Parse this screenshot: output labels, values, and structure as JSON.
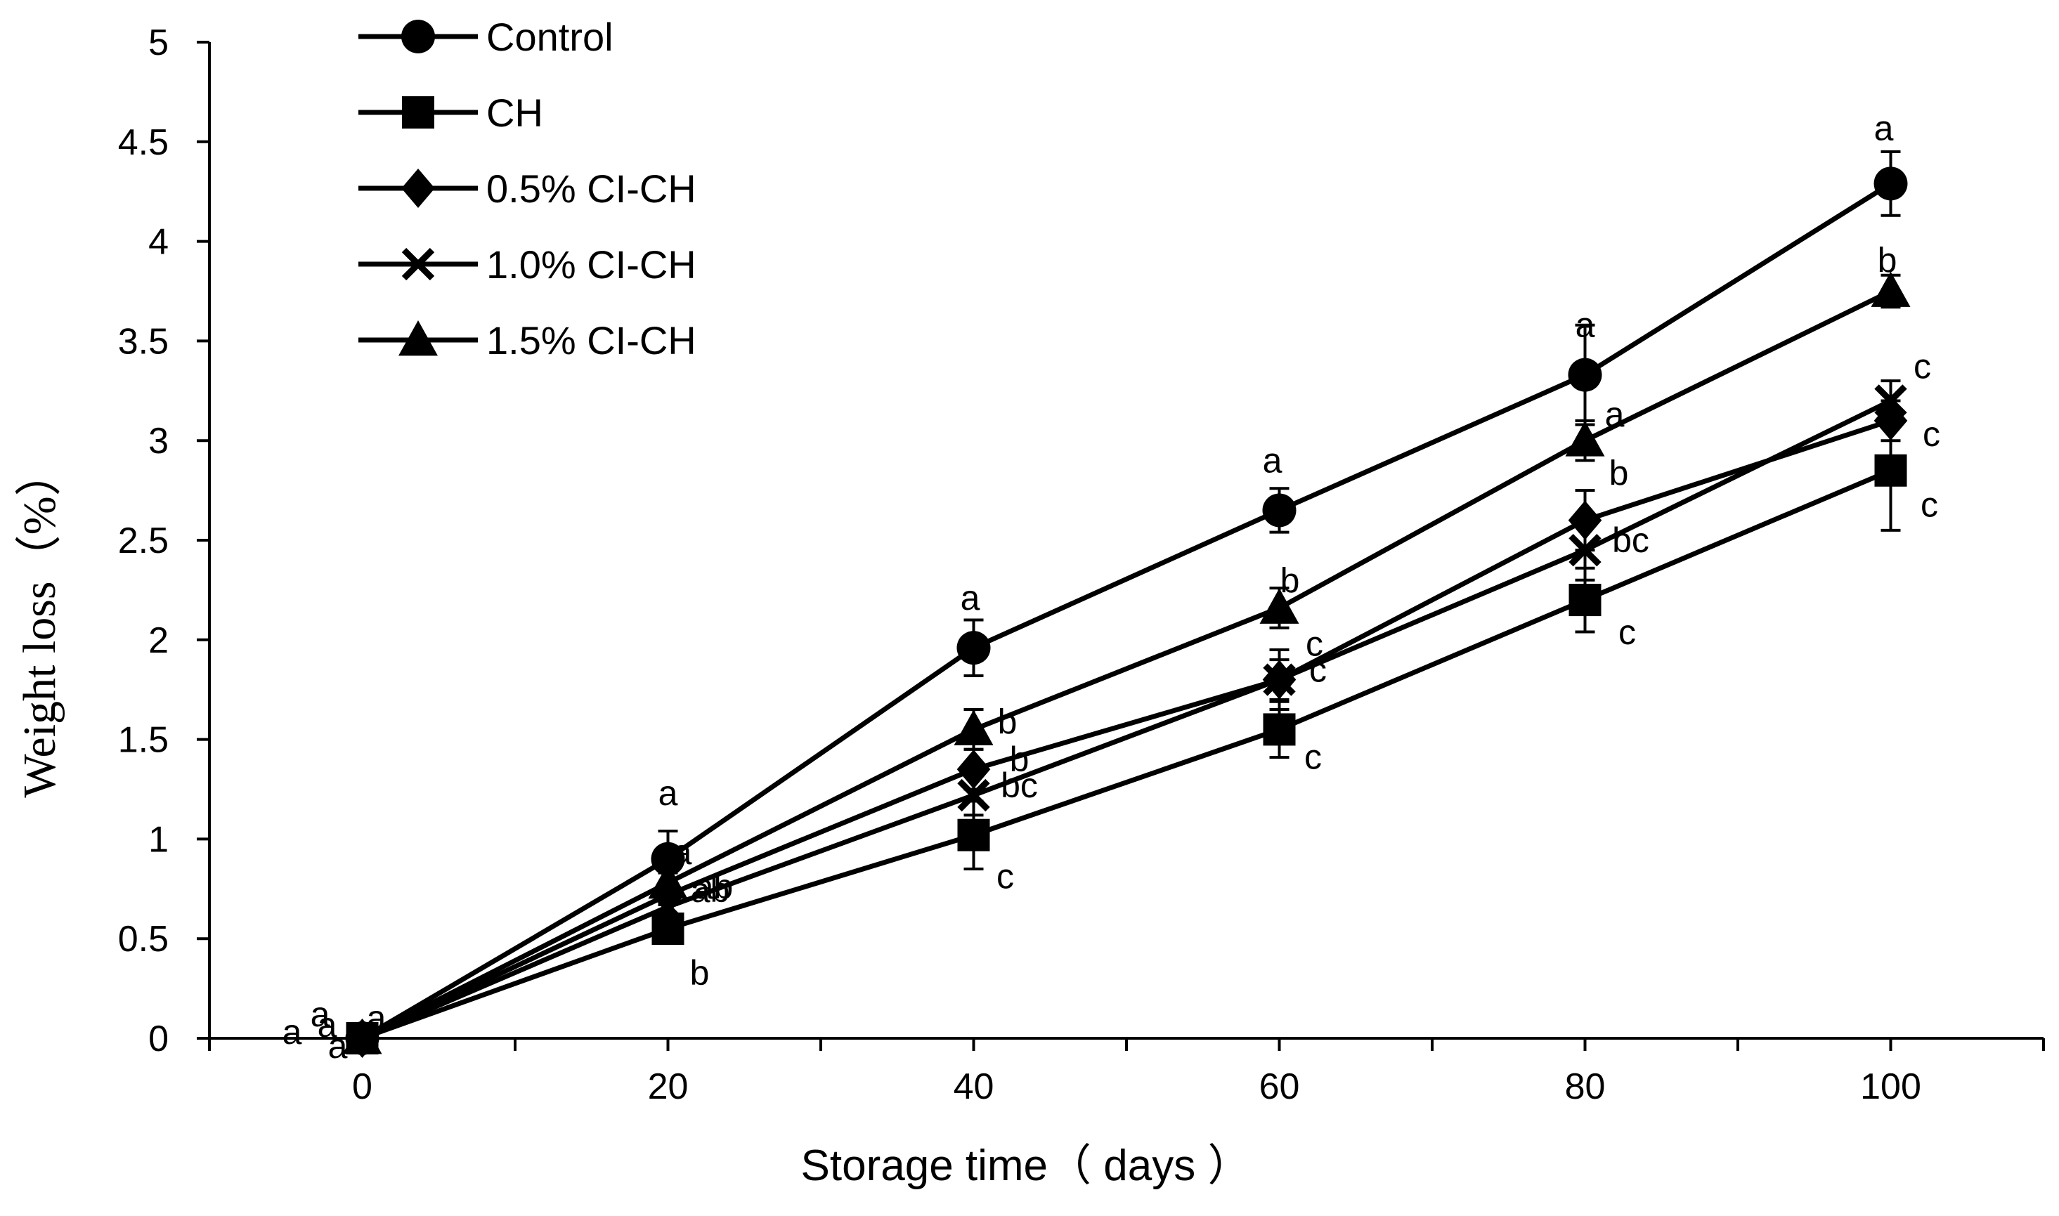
{
  "chart_data": {
    "type": "line",
    "title": "",
    "xlabel": "Storage time（ days ）",
    "ylabel": "Weight loss（%）",
    "x": [
      0,
      20,
      40,
      60,
      80,
      100
    ],
    "xlim": [
      -10,
      110
    ],
    "ylim": [
      0,
      5
    ],
    "x_ticks": [
      0,
      20,
      40,
      60,
      80,
      100
    ],
    "y_ticks": [
      0,
      0.5,
      1,
      1.5,
      2,
      2.5,
      3,
      3.5,
      4,
      4.5,
      5
    ],
    "y_tick_labels": [
      "0",
      "0.5",
      "1",
      "1.5",
      "2",
      "2.5",
      "3",
      "3.5",
      "4",
      "4.5",
      "5"
    ],
    "grid": false,
    "legend_position": "top-left",
    "series": [
      {
        "name": "Control",
        "marker": "circle",
        "values": [
          0,
          0.9,
          1.96,
          2.65,
          3.33,
          4.29
        ],
        "errors": [
          0,
          0.14,
          0.14,
          0.11,
          0.25,
          0.16
        ],
        "letters": [
          "a",
          "a",
          "a",
          "a",
          "a",
          "a"
        ]
      },
      {
        "name": "CH",
        "marker": "square",
        "values": [
          0,
          0.55,
          1.02,
          1.55,
          2.2,
          2.85
        ],
        "errors": [
          0,
          0.05,
          0.17,
          0.14,
          0.16,
          0.3
        ],
        "letters": [
          "a",
          "b",
          "c",
          "c",
          "c",
          "c"
        ]
      },
      {
        "name": "0.5% CI-CH",
        "marker": "diamond",
        "values": [
          0,
          0.72,
          1.35,
          1.8,
          2.6,
          3.1
        ],
        "errors": [
          0,
          0.05,
          0.1,
          0.1,
          0.15,
          0.1
        ],
        "letters": [
          "a",
          "ab",
          "b",
          "c",
          "b",
          "c"
        ]
      },
      {
        "name": "1.0% CI-CH",
        "marker": "x",
        "values": [
          0,
          0.66,
          1.22,
          1.8,
          2.45,
          3.2
        ],
        "errors": [
          0,
          0.05,
          0.1,
          0.15,
          0.15,
          0.1
        ],
        "letters": [
          "a",
          "ab",
          "bc",
          "c",
          "bc",
          "c"
        ]
      },
      {
        "name": "1.5% CI-CH",
        "marker": "triangle",
        "values": [
          0,
          0.78,
          1.55,
          2.16,
          3.0,
          3.75
        ],
        "errors": [
          0,
          0.05,
          0.1,
          0.1,
          0.1,
          0.08
        ],
        "letters": [
          "a",
          "a",
          "b",
          "b",
          "a",
          "b"
        ]
      }
    ]
  }
}
